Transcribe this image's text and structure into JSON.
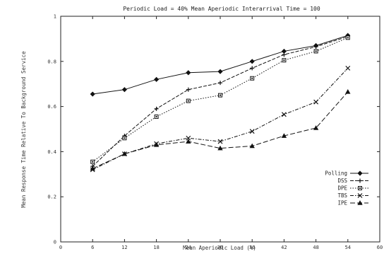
{
  "chart_data": {
    "type": "line",
    "title": "Periodic Load = 40%  Mean Aperiodic Interarrival Time = 100",
    "xlabel": "Mean Aperiodic Load (%)",
    "ylabel": "Mean Response Time Relative To Background Service",
    "xlim": [
      0,
      60
    ],
    "ylim": [
      0,
      1
    ],
    "xticks": [
      0,
      6,
      12,
      18,
      24,
      30,
      36,
      42,
      48,
      54,
      60
    ],
    "yticks": [
      0,
      0.2,
      0.4,
      0.6,
      0.8,
      1
    ],
    "xtick_labels": [
      "0",
      "6",
      "12",
      "18",
      "24",
      "30",
      "36",
      "42",
      "48",
      "54",
      "60"
    ],
    "ytick_labels": [
      "0",
      "0.2",
      "0.4",
      "0.6",
      "0.8",
      "1"
    ],
    "grid": false,
    "legend_position": "right",
    "x": [
      6,
      12,
      18,
      24,
      30,
      36,
      42,
      48,
      54
    ],
    "series": [
      {
        "name": "Polling",
        "marker": "diamond",
        "dash": "solid",
        "values": [
          0.655,
          0.675,
          0.72,
          0.75,
          0.755,
          0.8,
          0.845,
          0.87,
          0.915
        ]
      },
      {
        "name": "DSS",
        "marker": "plus",
        "dash": "dash",
        "values": [
          0.335,
          0.47,
          0.59,
          0.675,
          0.705,
          0.77,
          0.83,
          0.865,
          0.91
        ]
      },
      {
        "name": "DPE",
        "marker": "square",
        "dash": "dot",
        "values": [
          0.355,
          0.46,
          0.555,
          0.625,
          0.65,
          0.725,
          0.805,
          0.845,
          0.905
        ]
      },
      {
        "name": "TBS",
        "marker": "cross",
        "dash": "dashdot",
        "values": [
          0.32,
          0.39,
          0.435,
          0.46,
          0.445,
          0.49,
          0.565,
          0.62,
          0.77
        ]
      },
      {
        "name": "IPE",
        "marker": "triangle",
        "dash": "longdash",
        "values": [
          0.325,
          0.39,
          0.43,
          0.445,
          0.415,
          0.425,
          0.47,
          0.505,
          0.665
        ]
      }
    ]
  }
}
